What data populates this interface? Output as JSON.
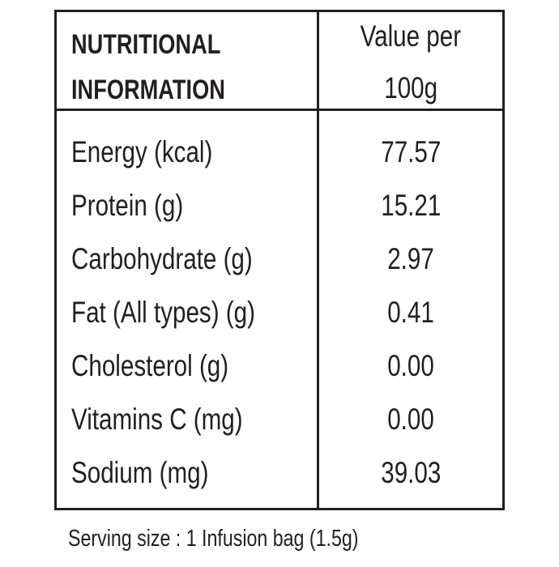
{
  "header": {
    "title_lines": [
      "NUTRITIONAL",
      "INFORMATION"
    ],
    "value_heading_lines": [
      "Value per",
      "100g"
    ]
  },
  "rows": [
    [
      "Energy (kcal)",
      "77.57"
    ],
    [
      "Protein (g)",
      "15.21"
    ],
    [
      "Carbohydrate (g)",
      "2.97"
    ],
    [
      "Fat (All types) (g)",
      "0.41"
    ],
    [
      "Cholesterol (g)",
      "0.00"
    ],
    [
      "Vitamins C (mg)",
      "0.00"
    ],
    [
      "Sodium (mg)",
      "39.03"
    ]
  ],
  "footer": "Serving size : 1 Infusion bag (1.5g)"
}
